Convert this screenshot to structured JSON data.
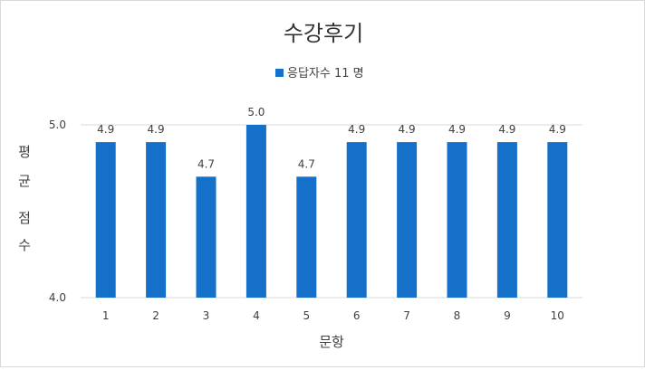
{
  "chart_data": {
    "type": "bar",
    "title": "수강후기",
    "legend": {
      "label": "응답자수 11 명",
      "placement": "top"
    },
    "xlabel": "문항",
    "ylabel_lines": [
      "평",
      "균",
      "점",
      "수"
    ],
    "categories": [
      "1",
      "2",
      "3",
      "4",
      "5",
      "6",
      "7",
      "8",
      "9",
      "10"
    ],
    "series": [
      {
        "name": "응답자수 11 명",
        "values": [
          4.9,
          4.9,
          4.7,
          5.0,
          4.7,
          4.9,
          4.9,
          4.9,
          4.9,
          4.9
        ]
      }
    ],
    "data_labels": [
      "4.9",
      "4.9",
      "4.7",
      "5.0",
      "4.7",
      "4.9",
      "4.9",
      "4.9",
      "4.9",
      "4.9"
    ],
    "ylim": [
      4.0,
      5.0
    ],
    "yticks": [
      "4.0",
      "5.0"
    ],
    "grid": true,
    "colors": {
      "bar": "#1470c8",
      "grid": "#d9d9d9",
      "text": "#404040",
      "title": "#333333"
    }
  }
}
